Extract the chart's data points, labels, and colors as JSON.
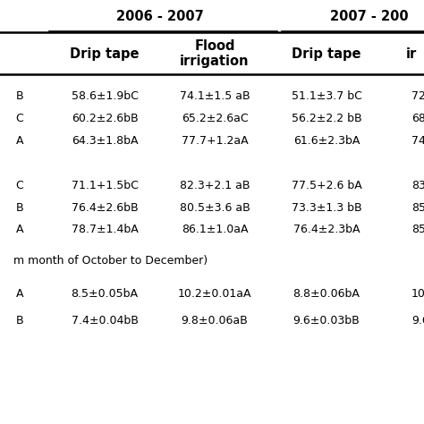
{
  "year_headers": [
    "2006 - 2007",
    "2007 - 200"
  ],
  "col_headers": [
    "",
    "Drip tape",
    "Flood\nirrigation",
    "Drip tape",
    "ir"
  ],
  "group1": [
    [
      "B",
      "58.6±1.9bC",
      "74.1±1.5 aB",
      "51.1±3.7 bC",
      "72"
    ],
    [
      "C",
      "60.2±2.6bB",
      "65.2±2.6aC",
      "56.2±2.2 bB",
      "68"
    ],
    [
      "A",
      "64.3±1.8bA",
      "77.7+1.2aA",
      "61.6±2.3bA",
      "74"
    ]
  ],
  "group2": [
    [
      "C",
      "71.1+1.5bC",
      "82.3+2.1 aB",
      "77.5+2.6 bA",
      "83"
    ],
    [
      "B",
      "76.4±2.6bB",
      "80.5±3.6 aB",
      "73.3±1.3 bB",
      "85"
    ],
    [
      "A",
      "78.7±1.4bA",
      "86.1±1.0aA",
      "76.4±2.3bA",
      "85"
    ]
  ],
  "month_label": "m month of October to December)",
  "group3": [
    [
      "A",
      "8.5±0.05bA",
      "10.2±0.01aA",
      "8.8±0.06bA",
      "10."
    ],
    [
      "B",
      "7.4±0.04bB",
      "9.8±0.06aB",
      "9.6±0.03bB",
      "9.6"
    ]
  ],
  "bg_color": "white",
  "text_color": "black",
  "data_fontsize": 9.0,
  "header_fontsize": 10.5
}
